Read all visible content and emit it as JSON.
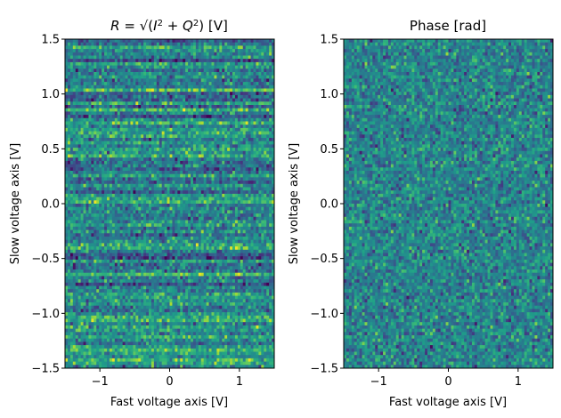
{
  "chart_data": [
    {
      "type": "heatmap",
      "title": "R = √(I² + Q²) [V]",
      "title_parts": {
        "math": "R = √(I² + Q²)",
        "unit": "[V]"
      },
      "xlabel": "Fast voltage axis [V]",
      "ylabel": "Slow voltage axis [V]",
      "xlim": [
        -1.5,
        1.5
      ],
      "ylim": [
        -1.5,
        1.5
      ],
      "xticks": [
        -1,
        0,
        1
      ],
      "xtick_labels": [
        "−1",
        "0",
        "1"
      ],
      "yticks": [
        -1.5,
        -1.0,
        -0.5,
        0.0,
        0.5,
        1.0,
        1.5
      ],
      "ytick_labels": [
        "−1.5",
        "−1.0",
        "−0.5",
        "0.0",
        "0.5",
        "1.0",
        "1.5"
      ],
      "colormap": "viridis",
      "grid": false,
      "pattern": "random noise with horizontal streaks; brighter band near -1.0 V"
    },
    {
      "type": "heatmap",
      "title": "Phase [rad]",
      "xlabel": "Fast voltage axis [V]",
      "ylabel": "Slow voltage axis [V]",
      "xlim": [
        -1.5,
        1.5
      ],
      "ylim": [
        -1.5,
        1.5
      ],
      "xticks": [
        -1,
        0,
        1
      ],
      "xtick_labels": [
        "−1",
        "0",
        "1"
      ],
      "yticks": [
        -1.5,
        -1.0,
        -0.5,
        0.0,
        0.5,
        1.0,
        1.5
      ],
      "ytick_labels": [
        "−1.5",
        "−1.0",
        "−0.5",
        "0.0",
        "0.5",
        "1.0",
        "1.5"
      ],
      "colormap": "viridis",
      "grid": false,
      "pattern": "uncorrelated random noise"
    }
  ]
}
